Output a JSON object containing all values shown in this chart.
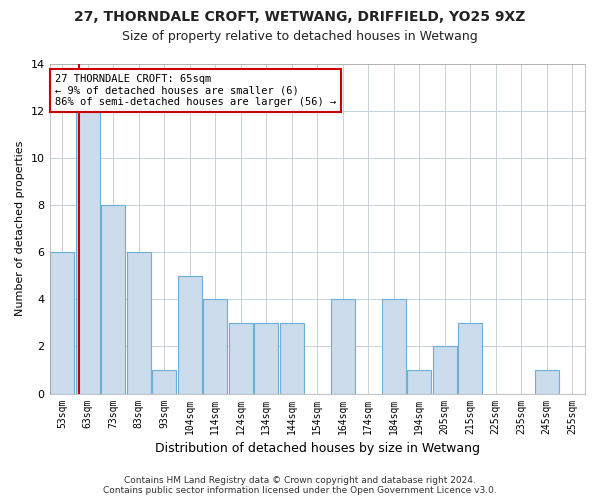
{
  "title": "27, THORNDALE CROFT, WETWANG, DRIFFIELD, YO25 9XZ",
  "subtitle": "Size of property relative to detached houses in Wetwang",
  "xlabel": "Distribution of detached houses by size in Wetwang",
  "ylabel": "Number of detached properties",
  "bar_labels": [
    "53sqm",
    "63sqm",
    "73sqm",
    "83sqm",
    "93sqm",
    "104sqm",
    "114sqm",
    "124sqm",
    "134sqm",
    "144sqm",
    "154sqm",
    "164sqm",
    "174sqm",
    "184sqm",
    "194sqm",
    "205sqm",
    "215sqm",
    "225sqm",
    "235sqm",
    "245sqm",
    "255sqm"
  ],
  "bar_values": [
    6,
    12,
    8,
    6,
    1,
    5,
    4,
    3,
    3,
    3,
    0,
    4,
    0,
    4,
    1,
    2,
    3,
    0,
    0,
    1,
    0
  ],
  "bar_color": "#ccdcec",
  "bar_edge_color": "#6baed6",
  "property_line_index": 1,
  "annotation_text": "27 THORNDALE CROFT: 65sqm\n← 9% of detached houses are smaller (6)\n86% of semi-detached houses are larger (56) →",
  "annotation_box_color": "#ffffff",
  "annotation_box_edge": "#cc0000",
  "vline_color": "#cc0000",
  "grid_color": "#c8d0dc",
  "footer": "Contains HM Land Registry data © Crown copyright and database right 2024.\nContains public sector information licensed under the Open Government Licence v3.0.",
  "ylim": [
    0,
    14
  ],
  "yticks": [
    0,
    2,
    4,
    6,
    8,
    10,
    12,
    14
  ],
  "background_color": "#ffffff",
  "title_fontsize": 10,
  "subtitle_fontsize": 9
}
